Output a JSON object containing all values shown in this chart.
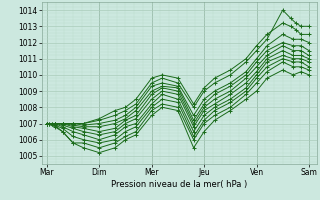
{
  "xlabel": "Pression niveau de la mer( hPa )",
  "ylim": [
    1004.5,
    1014.5
  ],
  "yticks": [
    1005,
    1006,
    1007,
    1008,
    1009,
    1010,
    1011,
    1012,
    1013,
    1014
  ],
  "day_labels": [
    "Mar",
    "Dim",
    "Mer",
    "Jeu",
    "Ven",
    "Sam"
  ],
  "day_positions": [
    0,
    1,
    2,
    3,
    4,
    5
  ],
  "xlim": [
    -0.1,
    5.15
  ],
  "bg_color": "#cce8df",
  "grid_major_color": "#aaccbb",
  "grid_minor_color": "#bbddcc",
  "line_color": "#1a6b1a",
  "lines": [
    {
      "x": [
        0.0,
        0.15,
        0.3,
        0.5,
        0.7,
        1.0,
        1.3,
        1.5,
        1.7,
        2.0,
        2.2,
        2.5,
        2.8,
        3.0,
        3.2,
        3.5,
        3.8,
        4.0,
        4.2,
        4.5,
        4.7,
        4.85,
        5.0
      ],
      "y": [
        1007.0,
        1006.8,
        1006.5,
        1005.8,
        1005.5,
        1005.2,
        1005.5,
        1006.0,
        1006.3,
        1007.5,
        1008.0,
        1007.8,
        1005.5,
        1006.5,
        1007.2,
        1007.8,
        1008.5,
        1009.0,
        1009.8,
        1010.3,
        1010.0,
        1010.2,
        1010.0
      ]
    },
    {
      "x": [
        0.0,
        0.15,
        0.3,
        0.5,
        0.7,
        1.0,
        1.3,
        1.5,
        1.7,
        2.0,
        2.2,
        2.5,
        2.8,
        3.0,
        3.2,
        3.5,
        3.8,
        4.0,
        4.2,
        4.5,
        4.7,
        4.85,
        5.0
      ],
      "y": [
        1007.0,
        1006.9,
        1006.5,
        1005.8,
        1005.8,
        1005.5,
        1005.8,
        1006.2,
        1006.5,
        1007.8,
        1008.2,
        1008.0,
        1006.0,
        1007.0,
        1007.5,
        1008.0,
        1008.8,
        1009.5,
        1010.2,
        1010.8,
        1010.5,
        1010.5,
        1010.3
      ]
    },
    {
      "x": [
        0.0,
        0.15,
        0.3,
        0.5,
        0.7,
        1.0,
        1.3,
        1.5,
        1.7,
        2.0,
        2.2,
        2.5,
        2.8,
        3.0,
        3.2,
        3.5,
        3.8,
        4.0,
        4.2,
        4.5,
        4.7,
        4.85,
        5.0
      ],
      "y": [
        1007.0,
        1006.9,
        1006.7,
        1006.2,
        1006.0,
        1005.8,
        1006.0,
        1006.5,
        1006.8,
        1008.0,
        1008.5,
        1008.3,
        1006.2,
        1007.2,
        1007.8,
        1008.3,
        1009.0,
        1009.8,
        1010.5,
        1011.0,
        1010.8,
        1010.8,
        1010.5
      ]
    },
    {
      "x": [
        0.0,
        0.15,
        0.3,
        0.5,
        0.7,
        1.0,
        1.3,
        1.5,
        1.7,
        2.0,
        2.2,
        2.5,
        2.8,
        3.0,
        3.2,
        3.5,
        3.8,
        4.0,
        4.2,
        4.5,
        4.7,
        4.85,
        5.0
      ],
      "y": [
        1007.0,
        1007.0,
        1006.8,
        1006.5,
        1006.3,
        1006.0,
        1006.3,
        1006.8,
        1007.0,
        1008.2,
        1008.8,
        1008.5,
        1006.5,
        1007.5,
        1008.0,
        1008.5,
        1009.2,
        1010.0,
        1010.8,
        1011.2,
        1011.0,
        1011.0,
        1010.8
      ]
    },
    {
      "x": [
        0.0,
        0.15,
        0.3,
        0.5,
        0.7,
        1.0,
        1.3,
        1.5,
        1.7,
        2.0,
        2.2,
        2.5,
        2.8,
        3.0,
        3.2,
        3.5,
        3.8,
        4.0,
        4.2,
        4.5,
        4.7,
        4.85,
        5.0
      ],
      "y": [
        1007.0,
        1007.0,
        1006.9,
        1006.7,
        1006.5,
        1006.3,
        1006.5,
        1007.0,
        1007.3,
        1008.5,
        1009.0,
        1008.8,
        1006.8,
        1007.8,
        1008.2,
        1008.8,
        1009.5,
        1010.2,
        1011.0,
        1011.5,
        1011.2,
        1011.2,
        1011.0
      ]
    },
    {
      "x": [
        0.0,
        0.15,
        0.3,
        0.5,
        0.7,
        1.0,
        1.3,
        1.5,
        1.7,
        2.0,
        2.2,
        2.5,
        2.8,
        3.0,
        3.2,
        3.5,
        3.8,
        4.0,
        4.2,
        4.5,
        4.7,
        4.85,
        5.0
      ],
      "y": [
        1007.0,
        1007.0,
        1007.0,
        1006.8,
        1006.7,
        1006.5,
        1006.7,
        1007.2,
        1007.5,
        1008.8,
        1009.2,
        1009.0,
        1007.0,
        1008.0,
        1008.5,
        1009.0,
        1009.8,
        1010.5,
        1011.2,
        1011.8,
        1011.5,
        1011.5,
        1011.2
      ]
    },
    {
      "x": [
        0.0,
        0.15,
        0.3,
        0.5,
        0.7,
        1.0,
        1.3,
        1.5,
        1.7,
        2.0,
        2.2,
        2.5,
        2.8,
        3.0,
        3.2,
        3.5,
        3.8,
        4.0,
        4.2,
        4.5,
        4.7,
        4.85,
        5.0
      ],
      "y": [
        1007.0,
        1007.0,
        1007.0,
        1006.9,
        1006.8,
        1006.8,
        1007.0,
        1007.3,
        1007.8,
        1009.0,
        1009.3,
        1009.2,
        1007.2,
        1008.2,
        1008.8,
        1009.3,
        1010.0,
        1010.8,
        1011.5,
        1012.0,
        1011.8,
        1011.8,
        1011.5
      ]
    },
    {
      "x": [
        0.0,
        0.15,
        0.3,
        0.5,
        0.7,
        1.0,
        1.3,
        1.5,
        1.7,
        2.0,
        2.2,
        2.5,
        2.8,
        3.0,
        3.2,
        3.5,
        3.8,
        4.0,
        4.2,
        4.5,
        4.7,
        4.85,
        5.0
      ],
      "y": [
        1007.0,
        1007.0,
        1007.0,
        1007.0,
        1006.9,
        1007.0,
        1007.2,
        1007.5,
        1008.0,
        1009.3,
        1009.5,
        1009.3,
        1007.5,
        1008.5,
        1009.0,
        1009.5,
        1010.2,
        1011.0,
        1011.8,
        1012.5,
        1012.2,
        1012.2,
        1012.0
      ]
    },
    {
      "x": [
        0.0,
        0.05,
        0.1,
        0.15,
        0.3,
        0.5,
        0.7,
        1.0,
        1.3,
        1.5,
        1.7,
        2.0,
        2.2,
        2.5,
        2.8,
        3.0,
        3.2,
        3.5,
        3.8,
        4.0,
        4.2,
        4.5,
        4.65,
        4.75,
        4.85,
        5.0
      ],
      "y": [
        1007.0,
        1007.0,
        1007.0,
        1007.0,
        1007.0,
        1007.0,
        1007.0,
        1007.2,
        1007.5,
        1007.8,
        1008.2,
        1009.5,
        1009.8,
        1009.5,
        1008.0,
        1009.0,
        1009.5,
        1010.0,
        1010.8,
        1011.5,
        1012.2,
        1014.0,
        1013.5,
        1013.2,
        1013.0,
        1013.0
      ]
    },
    {
      "x": [
        0.0,
        0.05,
        0.1,
        0.15,
        0.3,
        0.5,
        0.7,
        1.0,
        1.3,
        1.5,
        1.7,
        2.0,
        2.2,
        2.5,
        2.8,
        3.0,
        3.2,
        3.5,
        3.8,
        4.0,
        4.2,
        4.5,
        4.65,
        4.75,
        4.85,
        5.0
      ],
      "y": [
        1007.0,
        1007.0,
        1007.0,
        1007.0,
        1007.0,
        1007.0,
        1007.0,
        1007.3,
        1007.8,
        1008.0,
        1008.5,
        1009.8,
        1010.0,
        1009.8,
        1008.2,
        1009.2,
        1009.8,
        1010.3,
        1011.0,
        1011.8,
        1012.5,
        1013.2,
        1013.0,
        1012.8,
        1012.5,
        1012.5
      ]
    }
  ]
}
